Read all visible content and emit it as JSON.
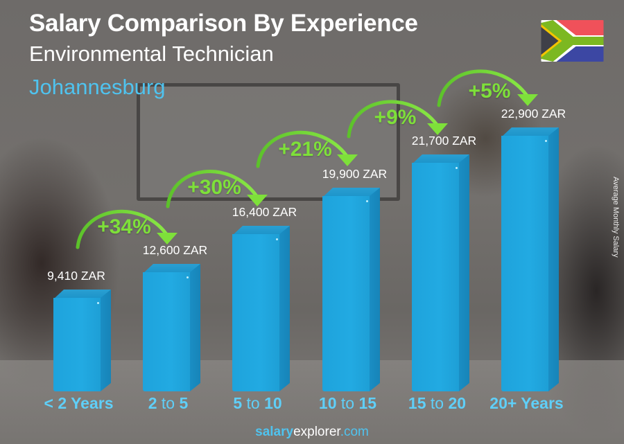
{
  "header": {
    "title": "Salary Comparison By Experience",
    "subtitle": "Environmental Technician",
    "city": "Johannesburg",
    "flag_icon": "south-africa-flag-icon"
  },
  "axis": {
    "ylabel": "Average Monthly Salary"
  },
  "bars": [
    {
      "label_bold_a": "< 2 Years",
      "label_thin": "",
      "label_bold_b": "",
      "value_label": "9,410 ZAR"
    },
    {
      "label_bold_a": "2",
      "label_thin": " to ",
      "label_bold_b": "5",
      "value_label": "12,600 ZAR"
    },
    {
      "label_bold_a": "5",
      "label_thin": " to ",
      "label_bold_b": "10",
      "value_label": "16,400 ZAR"
    },
    {
      "label_bold_a": "10",
      "label_thin": " to ",
      "label_bold_b": "15",
      "value_label": "19,900 ZAR"
    },
    {
      "label_bold_a": "15",
      "label_thin": " to ",
      "label_bold_b": "20",
      "value_label": "21,700 ZAR"
    },
    {
      "label_bold_a": "20+ Years",
      "label_thin": "",
      "label_bold_b": "",
      "value_label": "22,900 ZAR"
    }
  ],
  "increases": [
    "+34%",
    "+30%",
    "+21%",
    "+9%",
    "+5%"
  ],
  "footer": {
    "salary": "salary",
    "explorer": "explorer",
    "com": ".com"
  },
  "colors": {
    "bar": "#22aae2",
    "increase": "#7ee03a",
    "city": "#4fc3ef",
    "xlabel": "#5fcff8"
  },
  "chart_data": {
    "type": "bar",
    "title": "Salary Comparison By Experience",
    "subtitle": "Environmental Technician — Johannesburg",
    "categories": [
      "< 2 Years",
      "2 to 5",
      "5 to 10",
      "10 to 15",
      "15 to 20",
      "20+ Years"
    ],
    "values": [
      9410,
      12600,
      16400,
      19900,
      21700,
      22900
    ],
    "value_labels": [
      "9,410 ZAR",
      "12,600 ZAR",
      "16,400 ZAR",
      "19,900 ZAR",
      "21,700 ZAR",
      "22,900 ZAR"
    ],
    "increases": [
      "+34%",
      "+30%",
      "+21%",
      "+9%",
      "+5%"
    ],
    "currency": "ZAR",
    "xlabel": "",
    "ylabel": "Average Monthly Salary",
    "grid": false,
    "legend": "none"
  }
}
